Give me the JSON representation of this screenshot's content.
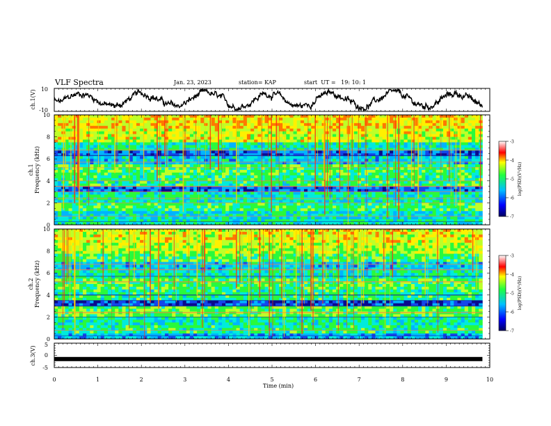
{
  "header": {
    "title": "VLF Spectra",
    "date": "Jan. 23, 2023",
    "station": "station= KAP",
    "start_ut": "start  UT =   19: 10: 1"
  },
  "chart_data": [
    {
      "type": "line",
      "panel": "ch1-waveform",
      "ylabel": "ch.1(V)",
      "ylim": [
        -10,
        10
      ],
      "yticks": [
        "10",
        "-10"
      ],
      "x_range_min": [
        0,
        10
      ],
      "data_extent_min": [
        0,
        9.83
      ],
      "note_series": "noisy waveform roughly between -6 and 8 V"
    },
    {
      "type": "heatmap",
      "panel": "ch1-spectrogram",
      "ylabel": "ch.1\nFrequency (kHz)",
      "ylabel_lines": [
        "ch.1",
        "Frequency (kHz)"
      ],
      "ylim": [
        0,
        10
      ],
      "yticks": [
        "0",
        "2",
        "4",
        "6",
        "8",
        "10"
      ],
      "colorbar": {
        "label": "log(PSD)(V²/Hz)",
        "range": [
          -7,
          -3
        ],
        "ticks": [
          "-7",
          "-6",
          "-5",
          "-4",
          "-3"
        ]
      }
    },
    {
      "type": "heatmap",
      "panel": "ch2-spectrogram",
      "ylabel": "ch.2\nFrequency (kHz)",
      "ylabel_lines": [
        "ch.2",
        "Frequency (kHz)"
      ],
      "ylim": [
        0,
        10
      ],
      "yticks": [
        "0",
        "2",
        "4",
        "6",
        "8",
        "10"
      ],
      "colorbar": {
        "label": "log(PSD)(V²/Hz)",
        "range": [
          -7,
          -3
        ],
        "ticks": [
          "-7",
          "-6",
          "-5",
          "-4",
          "-3"
        ]
      }
    },
    {
      "type": "line",
      "panel": "ch3-waveform",
      "ylabel": "ch.3(V)",
      "ylim": [
        -5,
        5
      ],
      "yticks": [
        "5",
        "0",
        "-5"
      ],
      "value_approx": -1.5
    }
  ],
  "x_axis": {
    "label": "Time (min)",
    "range": [
      0,
      10
    ],
    "ticks": [
      "0",
      "1",
      "2",
      "3",
      "4",
      "5",
      "6",
      "7",
      "8",
      "9",
      "10"
    ]
  },
  "colormap": [
    "#0000cc",
    "#0080ff",
    "#00e0ff",
    "#20ff60",
    "#ffff00",
    "#ff0000",
    "#ffffff"
  ]
}
